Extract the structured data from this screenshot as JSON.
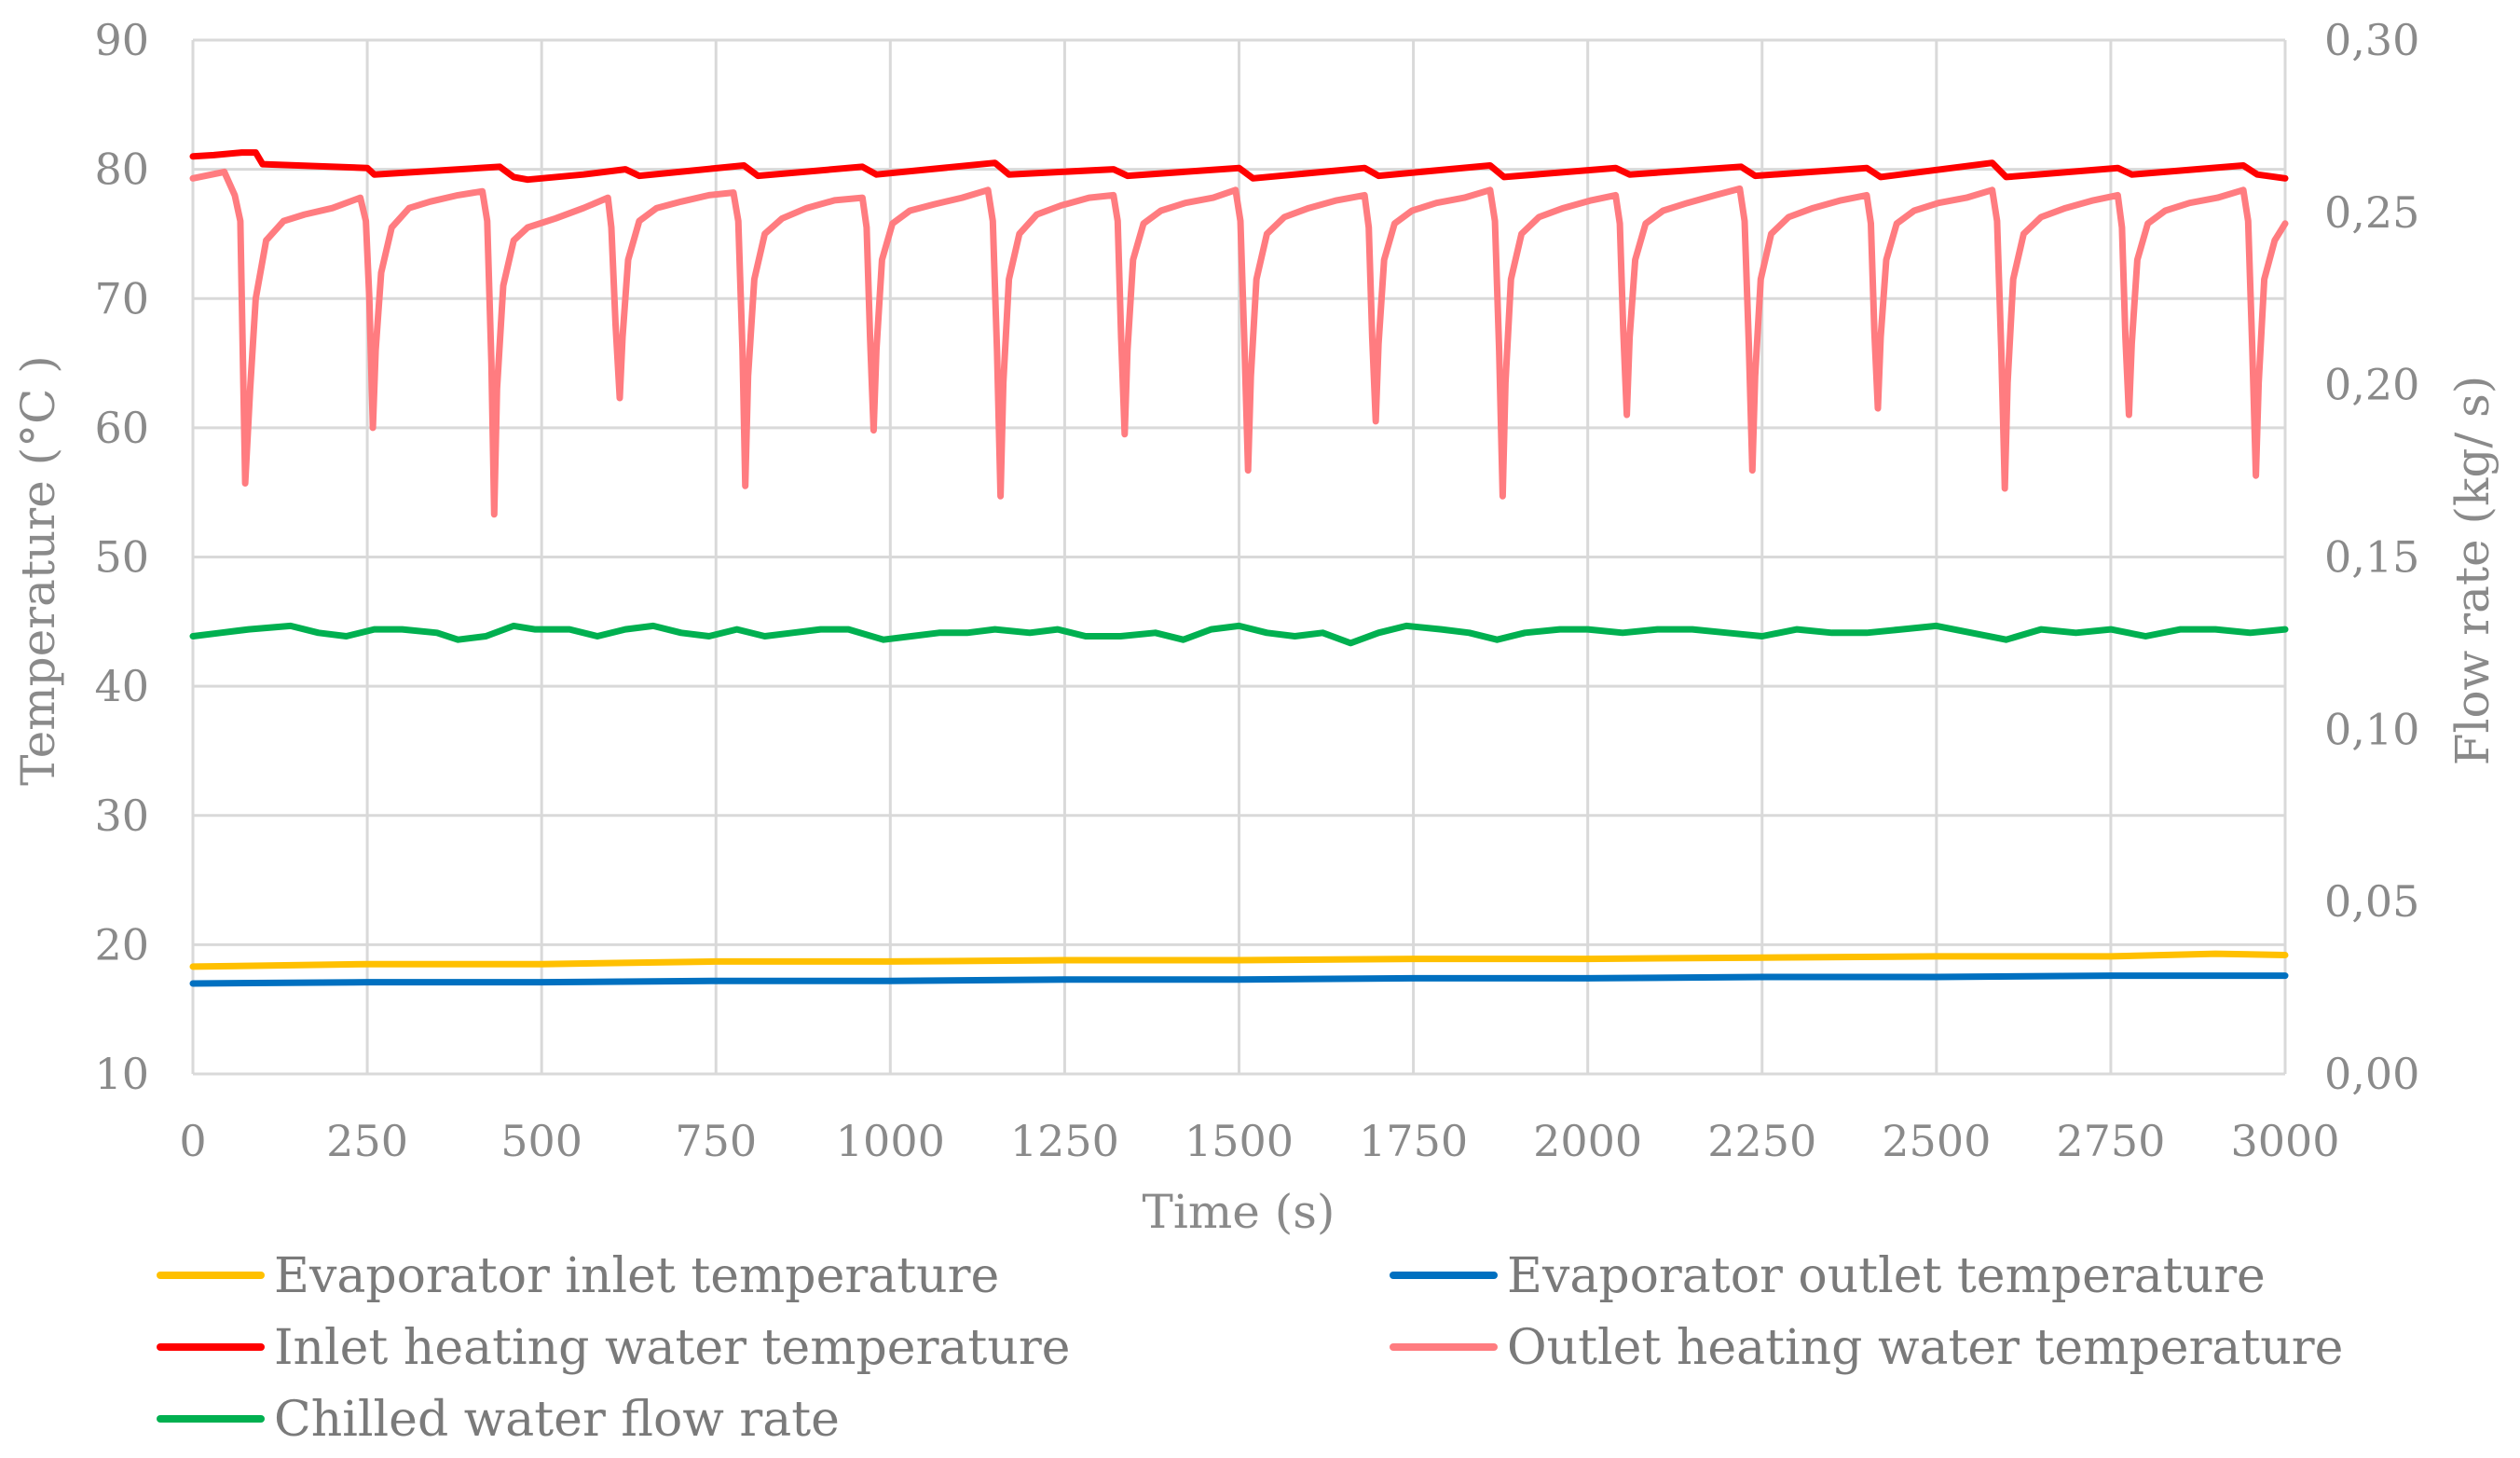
{
  "chart_data": {
    "type": "line",
    "title": "",
    "xlabel": "Time  (s)",
    "ylabel": "Temperature  (°C )",
    "y2label": "Flow rate (kg/ s)",
    "xlim": [
      0,
      3000
    ],
    "ylim": [
      10,
      90
    ],
    "y2lim": [
      0,
      0.3
    ],
    "x_ticks": [
      0,
      250,
      500,
      750,
      1000,
      1250,
      1500,
      1750,
      2000,
      2250,
      2500,
      2750,
      3000
    ],
    "x_tick_labels": [
      "0",
      "250",
      "500",
      "750",
      "1000",
      "1250",
      "1500",
      "1750",
      "2000",
      "2250",
      "2500",
      "2750",
      "3000"
    ],
    "y_ticks": [
      10,
      20,
      30,
      40,
      50,
      60,
      70,
      80,
      90
    ],
    "y_tick_labels": [
      "10",
      "20",
      "30",
      "40",
      "50",
      "60",
      "70",
      "80",
      "90"
    ],
    "y2_ticks": [
      0,
      0.05,
      0.1,
      0.15,
      0.2,
      0.25,
      0.3
    ],
    "y2_tick_labels": [
      "0,00",
      "0,05",
      "0,10",
      "0,15",
      "0,20",
      "0,25",
      "0,30"
    ],
    "grid": "vertical and horizontal",
    "legend_position": "bottom",
    "series": [
      {
        "name": "Evaporator inlet temperature",
        "axis": "left",
        "color": "#FFC000",
        "x": [
          0,
          250,
          500,
          750,
          1000,
          1250,
          1500,
          1750,
          2000,
          2250,
          2500,
          2750,
          2900,
          3000
        ],
        "y": [
          18.3,
          18.5,
          18.5,
          18.7,
          18.7,
          18.8,
          18.8,
          18.9,
          18.9,
          19.0,
          19.1,
          19.1,
          19.3,
          19.2
        ]
      },
      {
        "name": "Evaporator outlet temperature",
        "axis": "left",
        "color": "#0070C0",
        "x": [
          0,
          250,
          500,
          750,
          1000,
          1250,
          1500,
          1750,
          2000,
          2250,
          2500,
          2750,
          3000
        ],
        "y": [
          17.0,
          17.1,
          17.1,
          17.2,
          17.2,
          17.3,
          17.3,
          17.4,
          17.4,
          17.5,
          17.5,
          17.6,
          17.6
        ]
      },
      {
        "name": "Inlet heating water temperature",
        "axis": "left",
        "color": "#FF0000",
        "x": [
          0,
          30,
          70,
          90,
          100,
          250,
          260,
          440,
          460,
          480,
          560,
          620,
          640,
          790,
          810,
          960,
          980,
          1150,
          1170,
          1320,
          1340,
          1500,
          1520,
          1680,
          1700,
          1860,
          1880,
          2040,
          2060,
          2220,
          2240,
          2400,
          2420,
          2580,
          2600,
          2760,
          2780,
          2940,
          2960,
          3000
        ],
        "y": [
          81.0,
          81.1,
          81.3,
          81.3,
          80.4,
          80.1,
          79.6,
          80.2,
          79.4,
          79.2,
          79.6,
          80.0,
          79.5,
          80.3,
          79.5,
          80.2,
          79.6,
          80.5,
          79.6,
          80.0,
          79.5,
          80.1,
          79.3,
          80.1,
          79.5,
          80.3,
          79.4,
          80.1,
          79.6,
          80.2,
          79.5,
          80.1,
          79.4,
          80.5,
          79.4,
          80.1,
          79.6,
          80.3,
          79.6,
          79.3
        ]
      },
      {
        "name": "Outlet heating water temperature",
        "axis": "left",
        "color": "#FF7C80",
        "x": [
          0,
          45,
          60,
          68,
          75,
          82,
          90,
          105,
          130,
          160,
          200,
          240,
          248,
          253,
          258,
          262,
          270,
          285,
          310,
          340,
          380,
          415,
          422,
          428,
          432,
          436,
          445,
          460,
          480,
          520,
          560,
          595,
          600,
          606,
          612,
          616,
          624,
          640,
          665,
          700,
          740,
          775,
          782,
          788,
          792,
          796,
          805,
          820,
          845,
          880,
          920,
          960,
          966,
          971,
          976,
          980,
          988,
          1003,
          1028,
          1063,
          1103,
          1140,
          1147,
          1153,
          1158,
          1162,
          1170,
          1185,
          1210,
          1245,
          1285,
          1320,
          1326,
          1331,
          1336,
          1340,
          1348,
          1363,
          1388,
          1423,
          1463,
          1495,
          1502,
          1508,
          1513,
          1517,
          1525,
          1540,
          1565,
          1600,
          1640,
          1680,
          1686,
          1691,
          1696,
          1700,
          1708,
          1723,
          1748,
          1783,
          1823,
          1860,
          1867,
          1873,
          1878,
          1882,
          1890,
          1905,
          1930,
          1965,
          2005,
          2040,
          2046,
          2051,
          2056,
          2060,
          2068,
          2083,
          2108,
          2143,
          2183,
          2218,
          2225,
          2231,
          2236,
          2240,
          2248,
          2263,
          2288,
          2323,
          2363,
          2400,
          2406,
          2411,
          2416,
          2420,
          2428,
          2443,
          2468,
          2503,
          2543,
          2580,
          2587,
          2593,
          2598,
          2602,
          2610,
          2625,
          2650,
          2685,
          2725,
          2760,
          2766,
          2771,
          2776,
          2780,
          2788,
          2803,
          2828,
          2863,
          2903,
          2940,
          2947,
          2953,
          2958,
          2962,
          2970,
          2985,
          3000
        ],
        "y": [
          79.3,
          79.8,
          78.0,
          76.0,
          55.7,
          63.0,
          70.0,
          74.5,
          76.0,
          76.5,
          77.0,
          77.8,
          76.0,
          70.0,
          60.0,
          66.0,
          72.0,
          75.5,
          77.0,
          77.5,
          78.0,
          78.3,
          76.0,
          65.0,
          53.3,
          63.0,
          71.0,
          74.5,
          75.5,
          76.2,
          77.0,
          77.8,
          75.5,
          68.0,
          62.3,
          67.0,
          73.0,
          76.0,
          77.0,
          77.5,
          78.0,
          78.2,
          76.0,
          66.0,
          55.5,
          64.0,
          71.5,
          75.0,
          76.2,
          77.0,
          77.6,
          77.8,
          75.5,
          67.0,
          59.8,
          66.0,
          73.0,
          75.8,
          76.8,
          77.3,
          77.8,
          78.4,
          76.0,
          66.0,
          54.7,
          63.5,
          71.5,
          75.0,
          76.5,
          77.2,
          77.8,
          78.0,
          76.0,
          67.0,
          59.5,
          66.0,
          73.0,
          75.8,
          76.8,
          77.4,
          77.8,
          78.4,
          76.0,
          66.0,
          56.7,
          64.0,
          71.5,
          75.0,
          76.3,
          77.0,
          77.6,
          78.0,
          75.5,
          67.0,
          60.5,
          66.5,
          73.0,
          75.8,
          76.8,
          77.4,
          77.8,
          78.4,
          76.0,
          66.0,
          54.7,
          63.5,
          71.5,
          75.0,
          76.3,
          77.0,
          77.6,
          78.0,
          75.8,
          67.5,
          61.0,
          67.0,
          73.0,
          75.8,
          76.8,
          77.4,
          78.0,
          78.5,
          76.0,
          66.5,
          56.7,
          64.0,
          71.5,
          75.0,
          76.3,
          77.0,
          77.6,
          78.0,
          75.8,
          67.5,
          61.5,
          67.0,
          73.0,
          75.8,
          76.8,
          77.4,
          77.8,
          78.4,
          76.0,
          66.0,
          55.3,
          63.5,
          71.5,
          75.0,
          76.3,
          77.0,
          77.6,
          78.0,
          75.5,
          67.0,
          61.0,
          66.5,
          73.0,
          75.8,
          76.8,
          77.4,
          77.8,
          78.4,
          76.0,
          66.0,
          56.3,
          63.5,
          71.5,
          74.5,
          75.8
        ]
      },
      {
        "name": "Chilled water flow rate",
        "axis": "right",
        "color": "#00B050",
        "x": [
          0,
          40,
          80,
          140,
          180,
          220,
          260,
          300,
          350,
          380,
          420,
          460,
          490,
          540,
          580,
          620,
          660,
          700,
          740,
          780,
          820,
          860,
          900,
          940,
          990,
          1030,
          1070,
          1110,
          1150,
          1200,
          1240,
          1280,
          1330,
          1380,
          1420,
          1460,
          1500,
          1540,
          1580,
          1620,
          1660,
          1700,
          1740,
          1790,
          1830,
          1870,
          1910,
          1960,
          2000,
          2050,
          2100,
          2150,
          2200,
          2250,
          2300,
          2350,
          2400,
          2450,
          2500,
          2550,
          2600,
          2650,
          2700,
          2750,
          2800,
          2850,
          2900,
          2950,
          3000
        ],
        "y": [
          0.127,
          0.128,
          0.129,
          0.13,
          0.128,
          0.127,
          0.129,
          0.129,
          0.128,
          0.126,
          0.127,
          0.13,
          0.129,
          0.129,
          0.127,
          0.129,
          0.13,
          0.128,
          0.127,
          0.129,
          0.127,
          0.128,
          0.129,
          0.129,
          0.126,
          0.127,
          0.128,
          0.128,
          0.129,
          0.128,
          0.129,
          0.127,
          0.127,
          0.128,
          0.126,
          0.129,
          0.13,
          0.128,
          0.127,
          0.128,
          0.125,
          0.128,
          0.13,
          0.129,
          0.128,
          0.126,
          0.128,
          0.129,
          0.129,
          0.128,
          0.129,
          0.129,
          0.128,
          0.127,
          0.129,
          0.128,
          0.128,
          0.129,
          0.13,
          0.128,
          0.126,
          0.129,
          0.128,
          0.129,
          0.127,
          0.129,
          0.129,
          0.128,
          0.129
        ]
      }
    ]
  }
}
